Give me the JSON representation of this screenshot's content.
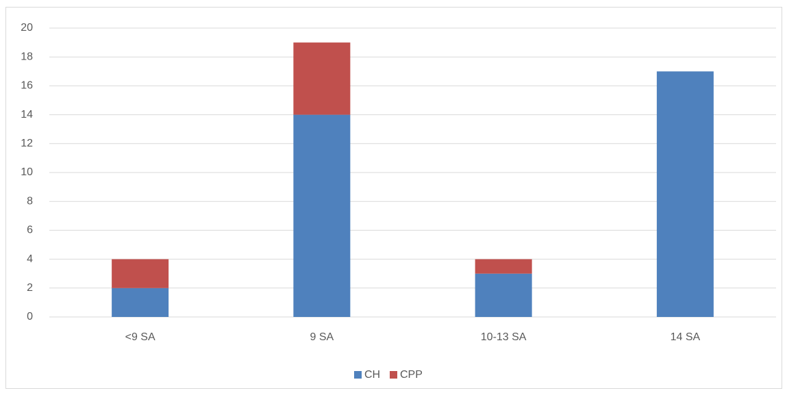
{
  "chart_data": {
    "type": "stacked_bar",
    "categories": [
      "<9 SA",
      "9 SA",
      "10-13 SA",
      "14 SA"
    ],
    "series": [
      {
        "name": "CH",
        "color": "#4f81bd",
        "values": [
          2,
          14,
          3,
          17
        ]
      },
      {
        "name": "CPP",
        "color": "#c0504d",
        "values": [
          2,
          5,
          1,
          0
        ]
      }
    ],
    "ylim": [
      0,
      20
    ],
    "yticks": [
      0,
      2,
      4,
      6,
      8,
      10,
      12,
      14,
      16,
      18,
      20
    ],
    "grid": true,
    "legend": "bottom"
  }
}
